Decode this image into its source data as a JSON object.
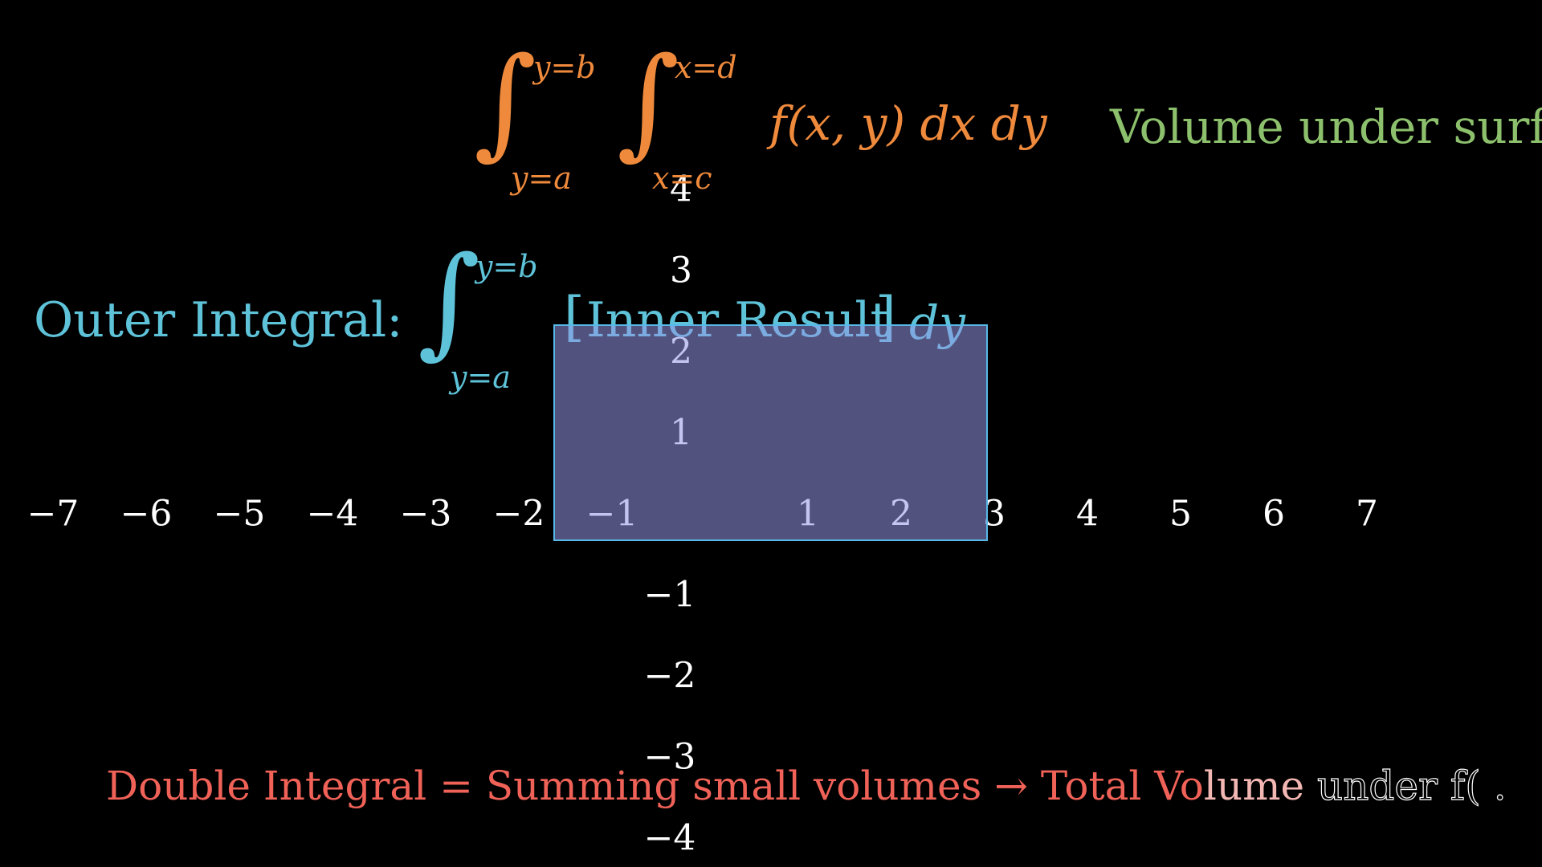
{
  "colors": {
    "background": "#000000",
    "orange": "#ef8a3c",
    "green": "#8cc06c",
    "blue": "#5ec3d9",
    "red": "#f06258",
    "axis_labels": "#ffffff",
    "region_fill": "#8a8fd8",
    "region_border": "#58b8e8"
  },
  "top_formula": {
    "int1_upper": "y=b",
    "int1_lower": "y=a",
    "int2_upper": "x=d",
    "int2_lower": "x=c",
    "integrand": "f(x, y) dx dy",
    "label": "Volume under surfa"
  },
  "outer_formula": {
    "label": "Outer Integral:",
    "upper": "y=b",
    "lower": "y=a",
    "body_open": "[",
    "body_text": "Inner Result",
    "body_close": "]",
    "differential": "dy"
  },
  "axes": {
    "x_ticks": [
      "−7",
      "−6",
      "−5",
      "−4",
      "−3",
      "−2",
      "−1",
      "1",
      "2",
      "3",
      "4",
      "5",
      "6",
      "7"
    ],
    "y_ticks": [
      "4",
      "3",
      "2",
      "1",
      "−1",
      "−2",
      "−3",
      "−4"
    ]
  },
  "region": {
    "x_range": [
      -1.5,
      3
    ],
    "y_range": [
      -0.3,
      2.4
    ]
  },
  "caption": {
    "part1": "Double Integral = Summing small volumes → Total Vo",
    "part2": "lume",
    "part3": " under f( ."
  }
}
